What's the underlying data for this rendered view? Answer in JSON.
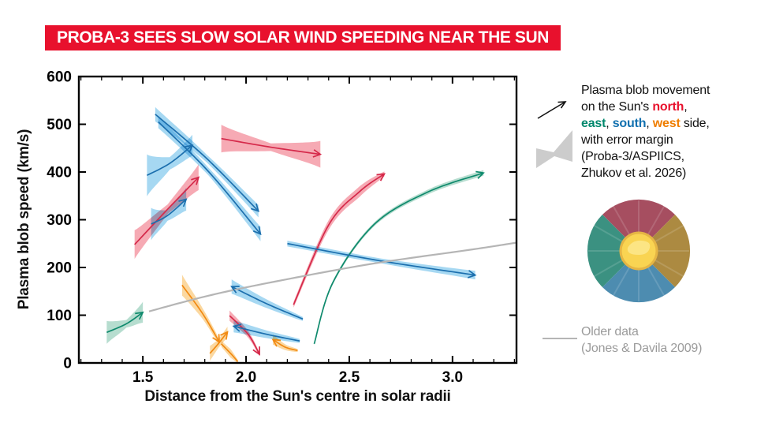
{
  "banner": {
    "title": "PROBA-3 SEES SLOW SOLAR WIND SPEEDING NEAR THE SUN",
    "bg": "#e8112d"
  },
  "colors": {
    "north": "#e8112d",
    "east": "#00876c",
    "south": "#1170af",
    "west": "#ef7d00",
    "text": "#111111",
    "older": "#9b9b9b"
  },
  "legend": {
    "lines": [
      [
        {
          "t": "Plasma blob movement"
        }
      ],
      [
        {
          "t": "on the Sun's "
        },
        {
          "t": "north",
          "c": "north"
        },
        {
          "t": ","
        }
      ],
      [
        {
          "t": "east",
          "c": "east"
        },
        {
          "t": ", "
        },
        {
          "t": "south",
          "c": "south"
        },
        {
          "t": ", "
        },
        {
          "t": "west",
          "c": "west"
        },
        {
          "t": " side,"
        }
      ],
      [
        {
          "t": "with error margin"
        }
      ],
      [
        {
          "t": "(Proba-3/ASPIICS,"
        }
      ],
      [
        {
          "t": "Zhukov et al. 2026)"
        }
      ]
    ],
    "older_line1": "Older data",
    "older_line2": "(Jones & Davila 2009)"
  },
  "sun_badge": {
    "north_color": "#a64e60",
    "west_color": "#ac8a41",
    "south_color": "#4d8cb0",
    "east_color": "#3b9181",
    "sun_rim_color": "#e5b544",
    "sun_color": "#f9d452",
    "sun_spot_color": "#fce584"
  },
  "chart_data": {
    "type": "line",
    "title": "",
    "xlabel": "Distance from the Sun's centre in solar radii",
    "ylabel": "Plasma blob speed (km/s)",
    "xlim": [
      1.19,
      3.31
    ],
    "ylim": [
      0,
      600
    ],
    "x_ticks": [
      1.5,
      2.0,
      2.5,
      3.0
    ],
    "x_tick_labels": [
      "1.5",
      "2.0",
      "2.5",
      "3.0"
    ],
    "x_minor_step": 0.1,
    "y_ticks": [
      0,
      100,
      200,
      300,
      400,
      500,
      600
    ],
    "y_tick_labels": [
      "0",
      "100",
      "200",
      "300",
      "400",
      "500",
      "600"
    ],
    "grid": false,
    "legend_position": "right",
    "series_colors": {
      "north": {
        "line": "#d5294a",
        "band": "#f6aab4"
      },
      "east": {
        "line": "#0f8a6d",
        "band": "#b6ddcf"
      },
      "south": {
        "line": "#1c6fae",
        "band": "#a6d8f2"
      },
      "west": {
        "line": "#f28a12",
        "band": "#fbd8a0"
      },
      "older": {
        "line": "#b5b5b5",
        "band": "#b5b5b5"
      }
    },
    "series": [
      {
        "name": "north-rising-left",
        "group": "north",
        "arrow": true,
        "points": [
          [
            1.46,
            248
          ],
          [
            1.62,
            322
          ],
          [
            1.77,
            389
          ]
        ],
        "band": [
          30,
          10,
          27
        ]
      },
      {
        "name": "north-bowtie-top",
        "group": "north",
        "arrow": true,
        "points": [
          [
            1.88,
            470
          ],
          [
            2.12,
            452
          ],
          [
            2.36,
            437
          ]
        ],
        "band": [
          29,
          8,
          28
        ]
      },
      {
        "name": "north-diving-small",
        "group": "north",
        "arrow": true,
        "points": [
          [
            1.92,
            99
          ],
          [
            2.01,
            60
          ],
          [
            2.065,
            18
          ]
        ],
        "band": [
          11,
          7,
          4
        ]
      },
      {
        "name": "north-big-rise",
        "group": "north",
        "arrow": true,
        "points": [
          [
            2.23,
            122
          ],
          [
            2.4,
            289
          ],
          [
            2.55,
            359
          ],
          [
            2.67,
            396
          ]
        ],
        "band": [
          6,
          10,
          11,
          5
        ]
      },
      {
        "name": "east-small-left",
        "group": "east",
        "arrow": true,
        "points": [
          [
            1.325,
            64
          ],
          [
            1.42,
            82
          ],
          [
            1.5,
            106
          ]
        ],
        "band": [
          24,
          8,
          22
        ]
      },
      {
        "name": "east-big-rise",
        "group": "east",
        "arrow": true,
        "points": [
          [
            2.33,
            40
          ],
          [
            2.42,
            168
          ],
          [
            2.62,
            290
          ],
          [
            2.88,
            358
          ],
          [
            3.15,
            398
          ]
        ],
        "band": [
          3,
          4,
          4,
          5,
          6
        ]
      },
      {
        "name": "south-descending-a",
        "group": "south",
        "arrow": true,
        "points": [
          [
            1.56,
            521
          ],
          [
            1.81,
            428
          ],
          [
            2.06,
            318
          ]
        ],
        "band": [
          15,
          8,
          13
        ]
      },
      {
        "name": "south-descending-b",
        "group": "south",
        "arrow": true,
        "points": [
          [
            1.575,
            505
          ],
          [
            1.82,
            400
          ],
          [
            2.07,
            270
          ]
        ],
        "band": [
          13,
          8,
          15
        ]
      },
      {
        "name": "south-rising-upper",
        "group": "south",
        "arrow": true,
        "points": [
          [
            1.52,
            393
          ],
          [
            1.63,
            418
          ],
          [
            1.74,
            456
          ]
        ],
        "band": [
          44,
          13,
          22
        ]
      },
      {
        "name": "south-rising-lower",
        "group": "south",
        "arrow": true,
        "points": [
          [
            1.54,
            291
          ],
          [
            1.62,
            309
          ],
          [
            1.71,
            343
          ]
        ],
        "band": [
          34,
          11,
          24
        ]
      },
      {
        "name": "south-leftward-upper",
        "group": "south",
        "arrow": true,
        "points": [
          [
            2.275,
            92
          ],
          [
            2.1,
            124
          ],
          [
            1.93,
            160
          ]
        ],
        "band": [
          4,
          9,
          15
        ]
      },
      {
        "name": "south-leftward-lower",
        "group": "south",
        "arrow": true,
        "points": [
          [
            2.26,
            46
          ],
          [
            2.1,
            60
          ],
          [
            1.94,
            77
          ]
        ],
        "band": [
          4,
          8,
          13
        ]
      },
      {
        "name": "south-long-rightward",
        "group": "south",
        "arrow": true,
        "points": [
          [
            2.2,
            250
          ],
          [
            2.65,
            214
          ],
          [
            3.11,
            184
          ]
        ],
        "band": [
          6,
          5,
          9
        ]
      },
      {
        "name": "west-descending",
        "group": "west",
        "arrow": true,
        "points": [
          [
            1.69,
            163
          ],
          [
            1.79,
            103
          ],
          [
            1.87,
            44
          ]
        ],
        "band": [
          22,
          11,
          6
        ]
      },
      {
        "name": "west-descending-tail",
        "group": "west",
        "arrow": false,
        "points": [
          [
            1.88,
            40
          ],
          [
            1.925,
            20
          ],
          [
            1.96,
            3
          ]
        ],
        "band": [
          6,
          9,
          3
        ]
      },
      {
        "name": "west-small-rising",
        "group": "west",
        "arrow": true,
        "points": [
          [
            1.825,
            20
          ],
          [
            1.865,
            40
          ],
          [
            1.91,
            65
          ]
        ],
        "band": [
          16,
          9,
          11
        ]
      },
      {
        "name": "west-leftward",
        "group": "west",
        "arrow": true,
        "points": [
          [
            2.25,
            26
          ],
          [
            2.19,
            33
          ],
          [
            2.13,
            49
          ]
        ],
        "band": [
          3,
          6,
          11
        ]
      },
      {
        "name": "older-data-curve",
        "group": "older",
        "arrow": false,
        "width": 2.2,
        "points": [
          [
            1.53,
            108
          ],
          [
            1.8,
            139
          ],
          [
            2.1,
            167
          ],
          [
            2.6,
            207
          ],
          [
            3.1,
            238
          ],
          [
            3.31,
            252
          ]
        ],
        "band": [
          0
        ]
      }
    ]
  }
}
